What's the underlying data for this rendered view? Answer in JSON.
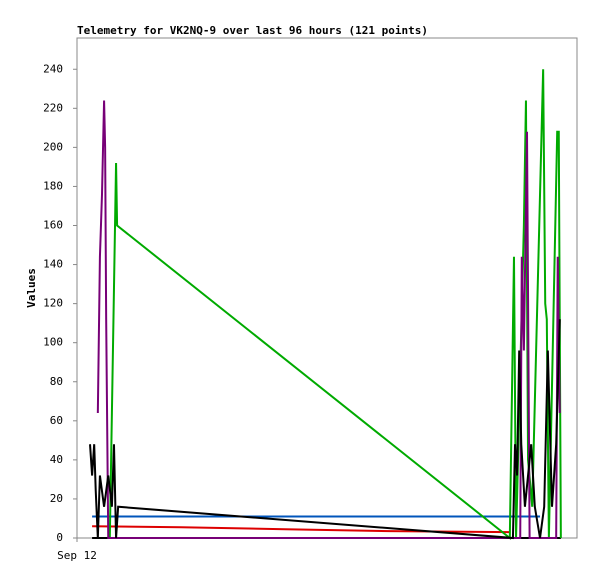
{
  "chart_data": {
    "type": "line",
    "title": "Telemetry for VK2NQ-9 over last 96 hours (121 points)",
    "y_label": "Values",
    "xlim": [
      0,
      96
    ],
    "xticks": [
      {
        "value": 0,
        "label": "Sep 12"
      }
    ],
    "ylim": [
      0,
      256
    ],
    "yticks": [
      0,
      20,
      40,
      60,
      80,
      100,
      120,
      140,
      160,
      180,
      200,
      220,
      240
    ],
    "series": [
      {
        "color": "#000000",
        "x": [
          2.9,
          92.9
        ],
        "values": [
          0,
          0
        ]
      },
      {
        "color": "#dd0000",
        "x": [
          2.9,
          20,
          40,
          60,
          83.1
        ],
        "values": [
          6,
          5.5,
          4.5,
          3.5,
          3
        ]
      },
      {
        "color": "#0055bb",
        "x": [
          2.9,
          88.9
        ],
        "values": [
          11,
          11
        ]
      },
      {
        "color": "#00aa00",
        "x": [
          6.3,
          6.7,
          7.1,
          7.5,
          7.7,
          83.1,
          83.5,
          83.9,
          84.3,
          85.8,
          86.2,
          86.6,
          87.4,
          89.5,
          89.9,
          90.2,
          90.6,
          92.2,
          92.5,
          92.9
        ],
        "values": [
          0,
          64,
          128,
          192,
          160,
          0,
          72,
          144,
          0,
          160,
          224,
          40,
          16,
          240,
          120,
          112,
          0,
          208,
          208,
          0
        ]
      },
      {
        "color": "#770077",
        "x": [
          4.0,
          4.4,
          4.8,
          5.2,
          5.4,
          5.6,
          6.0,
          85.1,
          85.4,
          85.8,
          86.4,
          86.9,
          92.0,
          92.3,
          92.7
        ],
        "values": [
          64,
          144,
          176,
          224,
          200,
          112,
          0,
          0,
          144,
          96,
          208,
          0,
          0,
          144,
          64
        ]
      },
      {
        "color": "#000000",
        "x": [
          2.5,
          2.9,
          3.3,
          3.6,
          4.0,
          4.4,
          5.2,
          6.0,
          6.7,
          7.1,
          7.5,
          7.9,
          83.7,
          84.1,
          84.5,
          84.9,
          85.3,
          86.0,
          87.2,
          87.9,
          88.9,
          89.7,
          90.4,
          91.2,
          92.0,
          92.7
        ],
        "values": [
          48,
          32,
          48,
          24,
          0,
          32,
          16,
          32,
          16,
          48,
          0,
          16,
          0,
          48,
          32,
          96,
          48,
          16,
          48,
          16,
          0,
          16,
          96,
          16,
          48,
          112
        ]
      }
    ]
  }
}
